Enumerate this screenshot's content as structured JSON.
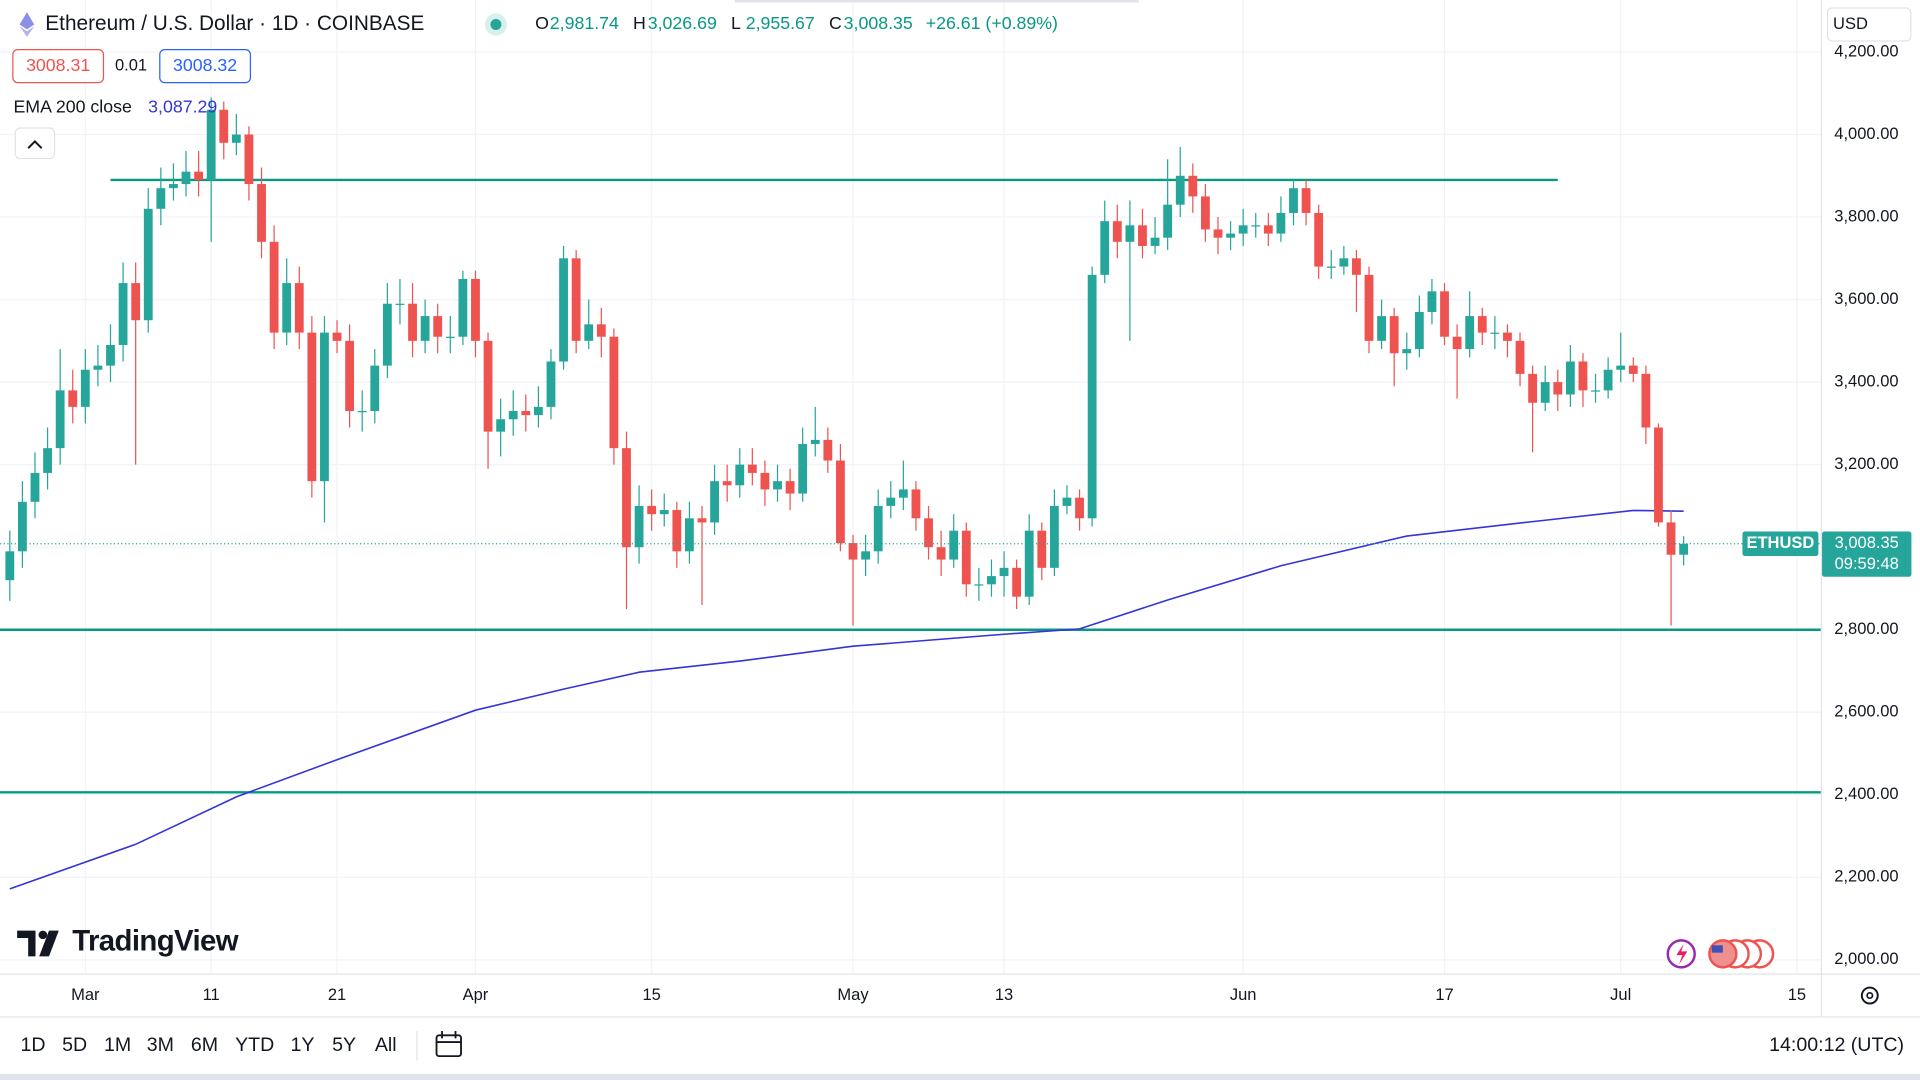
{
  "header": {
    "title": "Ethereum / U.S. Dollar · 1D · COINBASE",
    "ohlc": [
      {
        "key": "O",
        "value": "2,981.74"
      },
      {
        "key": "H",
        "value": "3,026.69"
      },
      {
        "key": "L",
        "value": "2,955.67"
      },
      {
        "key": "C",
        "value": "3,008.35"
      }
    ],
    "change": "+26.61 (+0.89%)",
    "bid": "3008.31",
    "spread": "0.01",
    "ask": "3008.32",
    "currency": "USD"
  },
  "chart_data": {
    "type": "candlestick",
    "series": [
      {
        "name": "ETHUSD",
        "up_color": "#26a69a",
        "down_color": "#ef5350",
        "open": [
          2920,
          2990,
          3110,
          3180,
          3240,
          3380,
          3340,
          3430,
          3440,
          3490,
          3640,
          3550,
          3820,
          3870,
          3880,
          3910,
          3890,
          4060,
          3980,
          4000,
          3880,
          3740,
          3520,
          3640,
          3520,
          3160,
          3520,
          3500,
          3330,
          3330,
          3440,
          3590,
          3590,
          3500,
          3560,
          3510,
          3510,
          3650,
          3500,
          3280,
          3310,
          3330,
          3320,
          3340,
          3450,
          3700,
          3500,
          3540,
          3510,
          3240,
          3000,
          3100,
          3080,
          3090,
          2990,
          3070,
          3060,
          3160,
          3150,
          3200,
          3180,
          3140,
          3160,
          3130,
          3250,
          3260,
          3210,
          3010,
          2970,
          2990,
          3100,
          3120,
          3140,
          3070,
          3000,
          2970,
          3040,
          2910,
          2910,
          2930,
          2950,
          2880,
          3040,
          2950,
          3100,
          3120,
          3070,
          3660,
          3790,
          3740,
          3780,
          3730,
          3750,
          3830,
          3900,
          3850,
          3770,
          3750,
          3760,
          3780,
          3780,
          3760,
          3810,
          3870,
          3810,
          3680,
          3680,
          3700,
          3660,
          3500,
          3560,
          3470,
          3480,
          3570,
          3620,
          3510,
          3480,
          3560,
          3520,
          3520,
          3500,
          3420,
          3350,
          3400,
          3370,
          3450,
          3380,
          3380,
          3430,
          3440,
          3420,
          3290,
          3060,
          2981.74
        ],
        "high": [
          3040,
          3160,
          3230,
          3290,
          3480,
          3430,
          3480,
          3490,
          3540,
          3690,
          3690,
          3870,
          3920,
          3930,
          3960,
          3960,
          4090,
          4080,
          4050,
          4020,
          3920,
          3780,
          3700,
          3680,
          3560,
          3560,
          3550,
          3540,
          3380,
          3480,
          3640,
          3650,
          3640,
          3600,
          3590,
          3560,
          3670,
          3670,
          3520,
          3360,
          3380,
          3370,
          3390,
          3480,
          3730,
          3720,
          3600,
          3580,
          3530,
          3280,
          3150,
          3140,
          3130,
          3110,
          3110,
          3100,
          3200,
          3200,
          3240,
          3240,
          3210,
          3200,
          3190,
          3290,
          3340,
          3290,
          3250,
          3030,
          3030,
          3140,
          3160,
          3210,
          3160,
          3100,
          3040,
          3080,
          3060,
          2950,
          2970,
          2990,
          2970,
          3080,
          3060,
          3140,
          3150,
          3140,
          3680,
          3840,
          3830,
          3840,
          3820,
          3800,
          3940,
          3970,
          3930,
          3880,
          3800,
          3790,
          3820,
          3810,
          3810,
          3850,
          3890,
          3890,
          3830,
          3720,
          3730,
          3720,
          3680,
          3600,
          3580,
          3520,
          3610,
          3650,
          3640,
          3540,
          3620,
          3580,
          3560,
          3540,
          3520,
          3440,
          3440,
          3430,
          3490,
          3470,
          3420,
          3460,
          3520,
          3460,
          3440,
          3300,
          3090,
          3026.69
        ],
        "low": [
          2870,
          2950,
          3070,
          3140,
          3200,
          3300,
          3300,
          3390,
          3400,
          3450,
          3200,
          3520,
          3780,
          3840,
          3850,
          3850,
          3740,
          3940,
          3950,
          3840,
          3700,
          3480,
          3490,
          3480,
          3120,
          3060,
          3470,
          3290,
          3280,
          3300,
          3410,
          3540,
          3460,
          3470,
          3470,
          3470,
          3490,
          3460,
          3190,
          3220,
          3270,
          3280,
          3290,
          3310,
          3430,
          3470,
          3480,
          3460,
          3200,
          2850,
          2960,
          3040,
          3050,
          2950,
          2960,
          2860,
          3030,
          3110,
          3120,
          3150,
          3100,
          3110,
          3090,
          3110,
          3220,
          3180,
          2990,
          2810,
          2930,
          2960,
          3070,
          3090,
          3040,
          2970,
          2930,
          2950,
          2880,
          2870,
          2880,
          2880,
          2850,
          2860,
          2920,
          2930,
          3080,
          3040,
          3050,
          3640,
          3700,
          3500,
          3700,
          3710,
          3720,
          3800,
          3810,
          3740,
          3710,
          3720,
          3730,
          3750,
          3730,
          3740,
          3780,
          3780,
          3650,
          3650,
          3660,
          3570,
          3470,
          3480,
          3390,
          3430,
          3460,
          3540,
          3490,
          3360,
          3460,
          3490,
          3480,
          3460,
          3390,
          3230,
          3330,
          3330,
          3340,
          3340,
          3350,
          3360,
          3400,
          3400,
          3250,
          3050,
          2810,
          2955.67
        ],
        "close": [
          2990,
          3110,
          3180,
          3240,
          3380,
          3340,
          3430,
          3440,
          3490,
          3640,
          3550,
          3820,
          3870,
          3880,
          3910,
          3890,
          4060,
          3980,
          4000,
          3880,
          3740,
          3520,
          3640,
          3520,
          3160,
          3520,
          3500,
          3330,
          3330,
          3440,
          3590,
          3590,
          3500,
          3560,
          3510,
          3510,
          3650,
          3500,
          3280,
          3310,
          3330,
          3320,
          3340,
          3450,
          3700,
          3500,
          3540,
          3510,
          3240,
          3000,
          3100,
          3080,
          3090,
          2990,
          3070,
          3060,
          3160,
          3150,
          3200,
          3180,
          3140,
          3160,
          3130,
          3250,
          3260,
          3210,
          3010,
          2970,
          2990,
          3100,
          3120,
          3140,
          3070,
          3000,
          2970,
          3040,
          2910,
          2910,
          2930,
          2950,
          2880,
          3040,
          2950,
          3100,
          3120,
          3070,
          3660,
          3790,
          3740,
          3780,
          3730,
          3750,
          3830,
          3900,
          3850,
          3770,
          3750,
          3760,
          3780,
          3780,
          3760,
          3810,
          3870,
          3810,
          3680,
          3680,
          3700,
          3660,
          3500,
          3560,
          3470,
          3480,
          3570,
          3620,
          3510,
          3480,
          3560,
          3520,
          3520,
          3500,
          3420,
          3350,
          3400,
          3370,
          3450,
          3380,
          3380,
          3430,
          3440,
          3420,
          3290,
          3060,
          2981.74,
          3008.35
        ]
      }
    ],
    "ema": {
      "name": "EMA 200 close",
      "color": "#3434d8",
      "x": [
        0,
        10,
        18,
        26,
        37,
        44,
        50,
        58,
        67,
        79,
        85,
        92,
        101,
        111,
        121,
        129,
        133
      ],
      "values": [
        2172,
        2280,
        2395,
        2485,
        2605,
        2656,
        2697,
        2724,
        2760,
        2789,
        2802,
        2872,
        2955,
        3027,
        3062,
        3089,
        3087.29
      ],
      "value_label": "3,087.29"
    },
    "levels": [
      {
        "value": 3890,
        "from": 8,
        "to": 123
      },
      {
        "value": 2800
      },
      {
        "value": 2406
      }
    ],
    "level_color": "#089981",
    "price_label": {
      "value": "3,008.35",
      "countdown": "09:59:48"
    },
    "xlim": [
      -0.78,
      143.9
    ],
    "ylim": [
      1967,
      4326
    ],
    "xticks": [
      {
        "value": 6,
        "label": "Mar"
      },
      {
        "value": 16,
        "label": "11"
      },
      {
        "value": 26,
        "label": "21"
      },
      {
        "value": 37,
        "label": "Apr"
      },
      {
        "value": 51,
        "label": "15"
      },
      {
        "value": 67,
        "label": "May"
      },
      {
        "value": 79,
        "label": "13"
      },
      {
        "value": 98,
        "label": "Jun"
      },
      {
        "value": 114,
        "label": "17"
      },
      {
        "value": 128,
        "label": "Jul"
      },
      {
        "value": 142,
        "label": "15"
      }
    ],
    "yticks": [
      {
        "value": 2000,
        "label": "2,000.00"
      },
      {
        "value": 2200,
        "label": "2,200.00"
      },
      {
        "value": 2400,
        "label": "2,400.00"
      },
      {
        "value": 2600,
        "label": "2,600.00"
      },
      {
        "value": 2800,
        "label": "2,800.00"
      },
      {
        "value": 3000,
        "label": "3,000.00"
      },
      {
        "value": 3200,
        "label": "3,200.00"
      },
      {
        "value": 3400,
        "label": "3,400.00"
      },
      {
        "value": 3600,
        "label": "3,600.00"
      },
      {
        "value": 3800,
        "label": "3,800.00"
      },
      {
        "value": 4000,
        "label": "4,000.00"
      },
      {
        "value": 4200,
        "label": "4,200.00"
      }
    ],
    "grid": true
  },
  "footer": {
    "ranges": [
      "1D",
      "5D",
      "1M",
      "3M",
      "6M",
      "YTD",
      "1Y",
      "5Y",
      "All"
    ],
    "time": "14:00:12 (UTC)",
    "brand": "TradingView"
  }
}
